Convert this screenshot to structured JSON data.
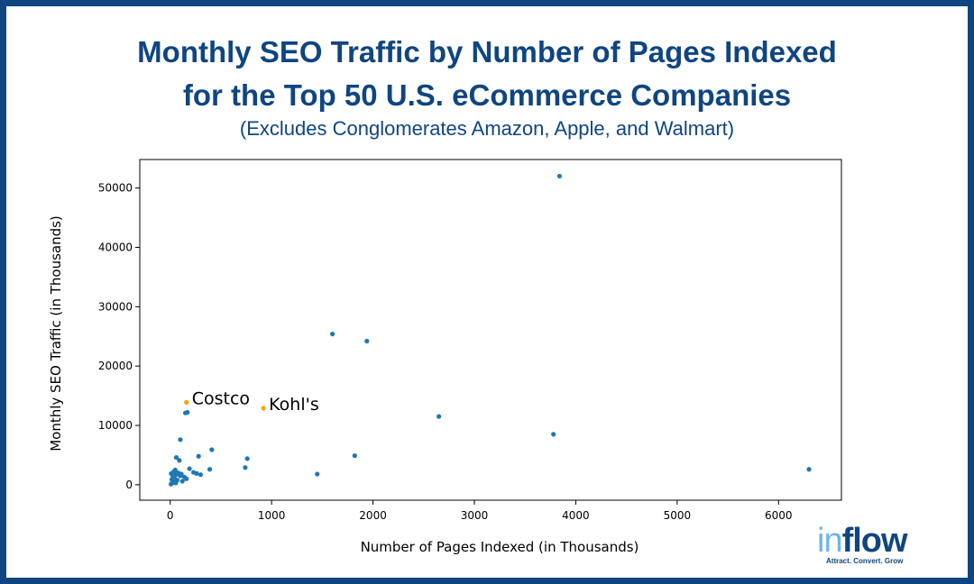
{
  "header": {
    "title_line1": "Monthly SEO Traffic by Number of Pages Indexed",
    "title_line2": "for the Top 50 U.S. eCommerce Companies",
    "subtitle": "(Excludes Conglomerates Amazon, Apple, and Walmart)"
  },
  "logo": {
    "word_part1": "in",
    "word_part2": "flow",
    "tagline": "Attract. Convert. Grow"
  },
  "colors": {
    "frame": "#0f4581",
    "title": "#0f4581",
    "point": "#1f77b4",
    "highlight": "#ff9f0a"
  },
  "chart_data": {
    "type": "scatter",
    "xlabel": "Number of Pages Indexed (in Thousands)",
    "ylabel": "Monthly SEO Traffic (in Thousands)",
    "xlim": [
      -300,
      6620
    ],
    "ylim": [
      -2600,
      54800
    ],
    "xticks": [
      0,
      1000,
      2000,
      3000,
      4000,
      5000,
      6000
    ],
    "yticks": [
      0,
      10000,
      20000,
      30000,
      40000,
      50000
    ],
    "grid": false,
    "points": [
      {
        "x": 3840,
        "y": 52000
      },
      {
        "x": 1600,
        "y": 25400
      },
      {
        "x": 1940,
        "y": 24200
      },
      {
        "x": 2650,
        "y": 11500
      },
      {
        "x": 3780,
        "y": 8500
      },
      {
        "x": 6300,
        "y": 2600
      },
      {
        "x": 1820,
        "y": 4900
      },
      {
        "x": 1450,
        "y": 1800
      },
      {
        "x": 760,
        "y": 4400
      },
      {
        "x": 740,
        "y": 2900
      },
      {
        "x": 410,
        "y": 5900
      },
      {
        "x": 390,
        "y": 2600
      },
      {
        "x": 280,
        "y": 4800
      },
      {
        "x": 300,
        "y": 1700
      },
      {
        "x": 260,
        "y": 1900
      },
      {
        "x": 230,
        "y": 2100
      },
      {
        "x": 190,
        "y": 2700
      },
      {
        "x": 170,
        "y": 12200
      },
      {
        "x": 150,
        "y": 12100
      },
      {
        "x": 100,
        "y": 7600
      },
      {
        "x": 90,
        "y": 4100
      },
      {
        "x": 60,
        "y": 4600
      },
      {
        "x": 140,
        "y": 1300
      },
      {
        "x": 120,
        "y": 600
      },
      {
        "x": 100,
        "y": 1500
      },
      {
        "x": 80,
        "y": 2000
      },
      {
        "x": 70,
        "y": 800
      },
      {
        "x": 60,
        "y": 1700
      },
      {
        "x": 50,
        "y": 2500
      },
      {
        "x": 40,
        "y": 1100
      },
      {
        "x": 35,
        "y": 2200
      },
      {
        "x": 30,
        "y": 600
      },
      {
        "x": 25,
        "y": 1500
      },
      {
        "x": 20,
        "y": 300
      },
      {
        "x": 15,
        "y": 900
      },
      {
        "x": 10,
        "y": 1900
      },
      {
        "x": 8,
        "y": 100
      },
      {
        "x": 160,
        "y": 1000
      },
      {
        "x": 110,
        "y": 1800
      },
      {
        "x": 55,
        "y": 300
      }
    ],
    "highlights": [
      {
        "label": "Costco",
        "x": 160,
        "y": 13900
      },
      {
        "label": "Kohl's",
        "x": 920,
        "y": 12900
      }
    ]
  }
}
